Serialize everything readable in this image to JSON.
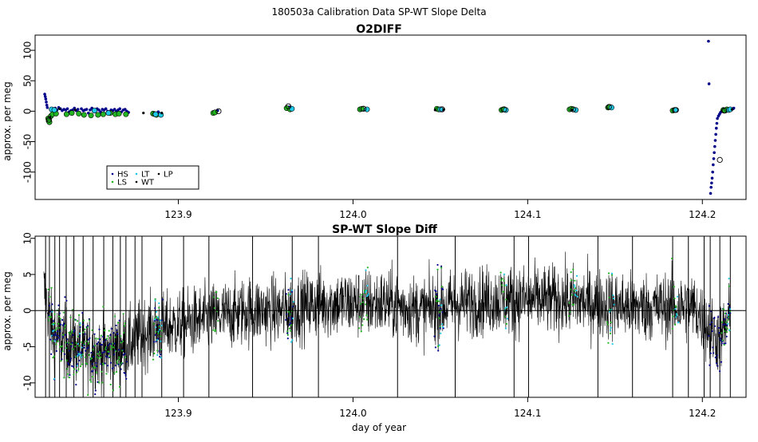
{
  "page_title": "180503a   Calibration Data SP-WT Slope Delta",
  "colors": {
    "HS": "#00008b",
    "LS": "#22b422",
    "LT": "#1ec8e6",
    "WT": "#000000",
    "LP": "#000000",
    "trace": "#000000",
    "zero_line": "#000000"
  },
  "chart_data": [
    {
      "type": "scatter",
      "title": "O2DIFF",
      "xlabel": "",
      "ylabel": "approx. per meg",
      "xlim": [
        123.818,
        124.225
      ],
      "ylim": [
        -145,
        125
      ],
      "x_ticks": [
        {
          "value": 123.9,
          "label": "123.9"
        },
        {
          "value": 124.0,
          "label": "124.0"
        },
        {
          "value": 124.1,
          "label": "124.1"
        },
        {
          "value": 124.2,
          "label": "124.2"
        }
      ],
      "y_ticks": [
        {
          "value": 100,
          "label": "100"
        },
        {
          "value": 50,
          "label": "50"
        },
        {
          "value": 0,
          "label": "0"
        },
        {
          "value": -50,
          "label": "-50"
        },
        {
          "value": -100,
          "label": "-100"
        }
      ],
      "legend": {
        "placement": "bottom-left",
        "entries": [
          {
            "name": "HS",
            "color_key": "HS",
            "marker": "dot"
          },
          {
            "name": "LS",
            "color_key": "LS",
            "marker": "dot"
          },
          {
            "name": "LT",
            "color_key": "LT",
            "marker": "dot"
          },
          {
            "name": "WT",
            "color_key": "WT",
            "marker": "dot"
          },
          {
            "name": "LP",
            "color_key": "LP",
            "marker": "dot"
          }
        ]
      },
      "series": [
        {
          "name": "HS",
          "points": [
            [
              123.8235,
              28
            ],
            [
              123.8238,
              24
            ],
            [
              123.8241,
              20
            ],
            [
              123.8244,
              15
            ],
            [
              123.8247,
              10
            ],
            [
              123.825,
              6
            ],
            [
              123.8285,
              3
            ],
            [
              123.8295,
              5
            ],
            [
              123.8305,
              2
            ],
            [
              123.8315,
              6
            ],
            [
              123.8325,
              4
            ],
            [
              123.8335,
              1
            ],
            [
              123.8345,
              3
            ],
            [
              123.8355,
              2
            ],
            [
              123.8365,
              4
            ],
            [
              123.8375,
              -1
            ],
            [
              123.8385,
              1
            ],
            [
              123.8395,
              2
            ],
            [
              123.8405,
              5
            ],
            [
              123.8415,
              1
            ],
            [
              123.8425,
              3
            ],
            [
              123.8435,
              -2
            ],
            [
              123.8445,
              4
            ],
            [
              123.8455,
              1
            ],
            [
              123.8465,
              2
            ],
            [
              123.8475,
              3
            ],
            [
              123.8485,
              -3
            ],
            [
              123.8495,
              2
            ],
            [
              123.8505,
              5
            ],
            [
              123.8515,
              1
            ],
            [
              123.8525,
              0
            ],
            [
              123.8535,
              4
            ],
            [
              123.8545,
              2
            ],
            [
              123.8555,
              -1
            ],
            [
              123.8565,
              3
            ],
            [
              123.8575,
              2
            ],
            [
              123.8585,
              4
            ],
            [
              123.8595,
              0
            ],
            [
              123.8605,
              -4
            ],
            [
              123.8615,
              2
            ],
            [
              123.8625,
              1
            ],
            [
              123.8635,
              3
            ],
            [
              123.8645,
              0
            ],
            [
              123.8655,
              2
            ],
            [
              123.8665,
              4
            ],
            [
              123.8675,
              -1
            ],
            [
              123.8685,
              2
            ],
            [
              123.8695,
              3
            ],
            [
              123.8705,
              0
            ],
            [
              123.8715,
              -2
            ],
            [
              123.8885,
              -1
            ],
            [
              123.8888,
              -3
            ],
            [
              123.8891,
              -4
            ],
            [
              123.9225,
              1
            ],
            [
              123.9635,
              7
            ],
            [
              123.9645,
              6
            ],
            [
              124.0065,
              3
            ],
            [
              124.0515,
              2
            ],
            [
              124.0868,
              2
            ],
            [
              124.1265,
              3
            ],
            [
              124.2035,
              115
            ],
            [
              124.2038,
              45
            ],
            [
              124.2047,
              -135
            ],
            [
              124.205,
              -125
            ],
            [
              124.2053,
              -118
            ],
            [
              124.2056,
              -110
            ],
            [
              124.2059,
              -100
            ],
            [
              124.2062,
              -88
            ],
            [
              124.2065,
              -78
            ],
            [
              124.2068,
              -68
            ],
            [
              124.2071,
              -58
            ],
            [
              124.2074,
              -48
            ],
            [
              124.2077,
              -38
            ],
            [
              124.208,
              -28
            ],
            [
              124.2083,
              -20
            ],
            [
              124.2086,
              -12
            ],
            [
              124.2092,
              -8
            ],
            [
              124.2098,
              -5
            ],
            [
              124.2104,
              -2
            ],
            [
              124.211,
              0
            ],
            [
              124.2175,
              4
            ],
            [
              124.218,
              5
            ]
          ]
        },
        {
          "name": "LS",
          "points": [
            [
              123.8255,
              -12
            ],
            [
              123.8258,
              -16
            ],
            [
              123.8262,
              -18
            ],
            [
              123.827,
              -8
            ],
            [
              123.828,
              -5
            ],
            [
              123.83,
              -4
            ],
            [
              123.836,
              -5
            ],
            [
              123.839,
              -3
            ],
            [
              123.843,
              -4
            ],
            [
              123.846,
              -6
            ],
            [
              123.85,
              -7
            ],
            [
              123.854,
              -6
            ],
            [
              123.857,
              -5
            ],
            [
              123.861,
              -3
            ],
            [
              123.864,
              -5
            ],
            [
              123.866,
              -4
            ],
            [
              123.87,
              -5
            ],
            [
              123.8855,
              -4
            ],
            [
              123.8865,
              -5
            ],
            [
              123.8875,
              -6
            ],
            [
              123.92,
              -3
            ],
            [
              123.921,
              -2
            ],
            [
              123.962,
              5
            ],
            [
              123.964,
              3
            ],
            [
              124.004,
              3
            ],
            [
              124.005,
              4
            ],
            [
              124.048,
              4
            ],
            [
              124.049,
              3
            ],
            [
              124.085,
              2
            ],
            [
              124.086,
              3
            ],
            [
              124.124,
              3
            ],
            [
              124.125,
              4
            ],
            [
              124.146,
              6
            ],
            [
              124.147,
              7
            ],
            [
              124.183,
              1
            ],
            [
              124.184,
              2
            ],
            [
              124.212,
              2
            ],
            [
              124.213,
              1
            ],
            [
              124.214,
              3
            ]
          ]
        },
        {
          "name": "LT",
          "points": [
            [
              123.8275,
              3
            ],
            [
              123.829,
              2
            ],
            [
              123.852,
              1
            ],
            [
              123.86,
              -3
            ],
            [
              123.887,
              -5
            ],
            [
              123.89,
              -6
            ],
            [
              123.965,
              4
            ],
            [
              124.008,
              3
            ],
            [
              124.05,
              3
            ],
            [
              124.0875,
              2
            ],
            [
              124.1275,
              2
            ],
            [
              124.148,
              6
            ],
            [
              124.185,
              2
            ],
            [
              124.215,
              2
            ],
            [
              124.216,
              3
            ]
          ]
        },
        {
          "name": "WT",
          "points": [
            [
              123.826,
              -14
            ],
            [
              123.923,
              0
            ],
            [
              123.963,
              8
            ],
            [
              124.006,
              4
            ],
            [
              124.051,
              3
            ],
            [
              124.0865,
              3
            ],
            [
              124.126,
              3
            ],
            [
              124.1465,
              7
            ],
            [
              124.1845,
              2
            ],
            [
              124.21,
              -80
            ],
            [
              124.2125,
              1
            ]
          ]
        },
        {
          "name": "LP",
          "points": [
            [
              123.8265,
              -10
            ],
            [
              123.832,
              4
            ],
            [
              123.841,
              2
            ],
            [
              123.88,
              -3
            ],
            [
              123.8905,
              -3
            ],
            [
              124.047,
              2
            ],
            [
              124.052,
              3
            ],
            [
              124.1255,
              2
            ],
            [
              124.217,
              3
            ]
          ]
        }
      ]
    },
    {
      "type": "line",
      "title": "SP-WT Slope Diff",
      "xlabel": "day of year",
      "ylabel": "approx. per meg",
      "xlim": [
        123.818,
        124.225
      ],
      "ylim": [
        -12,
        10.3
      ],
      "zero_line": 0,
      "x_ticks": [
        {
          "value": 123.9,
          "label": "123.9"
        },
        {
          "value": 124.0,
          "label": "124.0"
        },
        {
          "value": 124.1,
          "label": "124.1"
        },
        {
          "value": 124.2,
          "label": "124.2"
        }
      ],
      "y_ticks": [
        {
          "value": 10,
          "label": "10"
        },
        {
          "value": 5,
          "label": "5"
        },
        {
          "value": 0,
          "label": "0"
        },
        {
          "value": -5,
          "label": "-5"
        },
        {
          "value": -10,
          "label": "-10"
        }
      ],
      "trace": {
        "name": "SP-WT slope difference",
        "x_start": 123.823,
        "x_end": 124.216,
        "mean_profile": [
          [
            123.823,
            3
          ],
          [
            123.828,
            -3
          ],
          [
            123.84,
            -5
          ],
          [
            123.855,
            -6
          ],
          [
            123.87,
            -5
          ],
          [
            123.88,
            -3
          ],
          [
            123.9,
            -2
          ],
          [
            123.92,
            -1
          ],
          [
            123.94,
            0
          ],
          [
            123.96,
            0
          ],
          [
            123.98,
            1
          ],
          [
            124.0,
            1
          ],
          [
            124.02,
            1
          ],
          [
            124.04,
            0
          ],
          [
            124.06,
            1
          ],
          [
            124.08,
            1.5
          ],
          [
            124.1,
            1.5
          ],
          [
            124.12,
            1.5
          ],
          [
            124.14,
            1
          ],
          [
            124.16,
            0.5
          ],
          [
            124.18,
            0.5
          ],
          [
            124.195,
            0.5
          ],
          [
            124.205,
            -3
          ],
          [
            124.21,
            -4
          ],
          [
            124.216,
            -1
          ]
        ],
        "noise_band": 4,
        "spikes_x": [
          123.824,
          123.8262,
          123.8293,
          123.832,
          123.8358,
          123.8402,
          123.8455,
          123.8512,
          123.8573,
          123.8625,
          123.8668,
          123.87,
          123.8752,
          123.8792,
          123.8905,
          123.903,
          123.9175,
          123.9425,
          123.9652,
          123.9802,
          124.0255,
          124.0585,
          124.0922,
          124.1005,
          124.1402,
          124.16,
          124.183,
          124.192,
          124.201,
          124.2045,
          124.21,
          124.216
        ]
      },
      "colored_segments": [
        {
          "series": "HS",
          "ranges": [
            [
              123.826,
              123.8705
            ],
            [
              123.886,
              123.891
            ],
            [
              123.9615,
              123.9655
            ],
            [
              124.0465,
              124.052
            ],
            [
              124.2035,
              124.216
            ]
          ]
        },
        {
          "series": "LS",
          "ranges": [
            [
              123.8255,
              123.87
            ],
            [
              123.8855,
              123.8905
            ],
            [
              123.92,
              123.923
            ],
            [
              123.962,
              123.965
            ],
            [
              124.0035,
              124.0085
            ],
            [
              124.0475,
              124.051
            ],
            [
              124.0845,
              124.088
            ],
            [
              124.1235,
              124.1275
            ],
            [
              124.1455,
              124.1485
            ],
            [
              124.1825,
              124.1855
            ],
            [
              124.211,
              124.216
            ]
          ]
        },
        {
          "series": "LT",
          "ranges": [
            [
              123.8275,
              123.8295
            ],
            [
              123.842,
              123.845
            ],
            [
              123.8865,
              123.8905
            ],
            [
              123.964,
              123.966
            ],
            [
              124.007,
              124.009
            ],
            [
              124.0495,
              124.0515
            ],
            [
              124.0865,
              124.0885
            ],
            [
              124.1265,
              124.1285
            ],
            [
              124.147,
              124.1495
            ],
            [
              124.1845,
              124.1865
            ],
            [
              124.2145,
              124.2165
            ]
          ]
        }
      ]
    }
  ]
}
